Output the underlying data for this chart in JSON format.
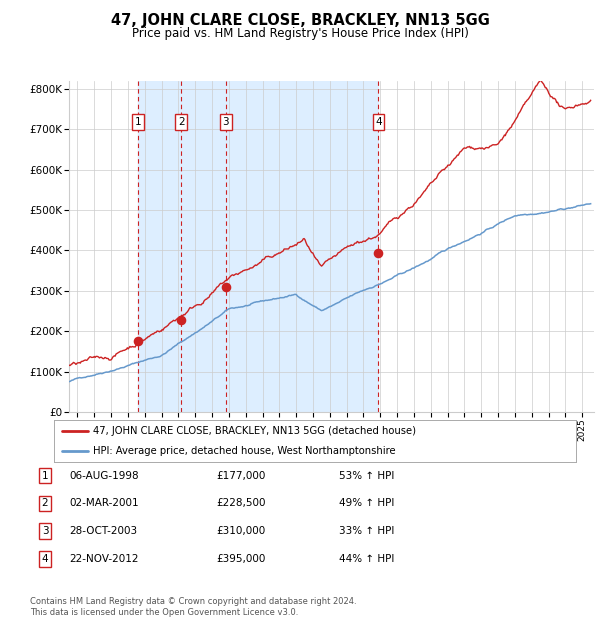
{
  "title": "47, JOHN CLARE CLOSE, BRACKLEY, NN13 5GG",
  "subtitle": "Price paid vs. HM Land Registry's House Price Index (HPI)",
  "footer": "Contains HM Land Registry data © Crown copyright and database right 2024.\nThis data is licensed under the Open Government Licence v3.0.",
  "legend_line1": "47, JOHN CLARE CLOSE, BRACKLEY, NN13 5GG (detached house)",
  "legend_line2": "HPI: Average price, detached house, West Northamptonshire",
  "sales": [
    {
      "num": 1,
      "date_dec": 1998.59,
      "price": 177000,
      "label": "06-AUG-1998",
      "pct": "53% ↑ HPI"
    },
    {
      "num": 2,
      "date_dec": 2001.16,
      "price": 228500,
      "label": "02-MAR-2001",
      "pct": "49% ↑ HPI"
    },
    {
      "num": 3,
      "date_dec": 2003.82,
      "price": 310000,
      "label": "28-OCT-2003",
      "pct": "33% ↑ HPI"
    },
    {
      "num": 4,
      "date_dec": 2012.89,
      "price": 395000,
      "label": "22-NOV-2012",
      "pct": "44% ↑ HPI"
    }
  ],
  "hpi_color": "#6699cc",
  "price_color": "#cc2222",
  "vline_color": "#cc2222",
  "shade_color": "#ddeeff",
  "grid_color": "#cccccc",
  "bg_color": "#ffffff",
  "ylim": [
    0,
    820000
  ],
  "xlim_start": 1994.5,
  "xlim_end": 2025.7,
  "yticks": [
    0,
    100000,
    200000,
    300000,
    400000,
    500000,
    600000,
    700000,
    800000
  ],
  "ytick_labels": [
    "£0",
    "£100K",
    "£200K",
    "£300K",
    "£400K",
    "£500K",
    "£600K",
    "£700K",
    "£800K"
  ],
  "xticks": [
    1995,
    1996,
    1997,
    1998,
    1999,
    2000,
    2001,
    2002,
    2003,
    2004,
    2005,
    2006,
    2007,
    2008,
    2009,
    2010,
    2011,
    2012,
    2013,
    2014,
    2015,
    2016,
    2017,
    2018,
    2019,
    2020,
    2021,
    2022,
    2023,
    2024,
    2025
  ]
}
